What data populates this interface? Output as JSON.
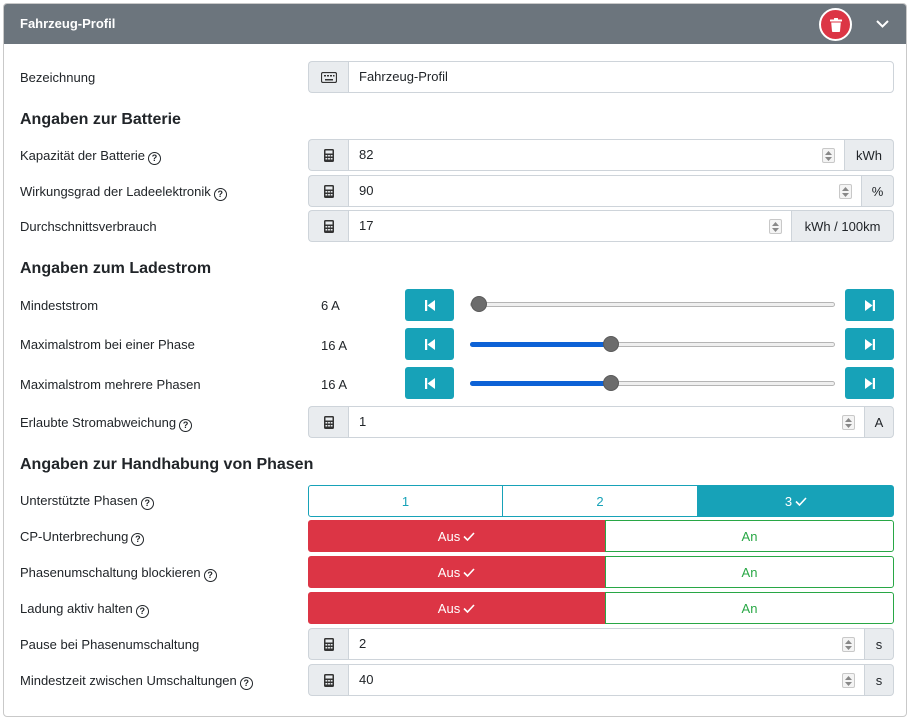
{
  "header": {
    "title": "Fahrzeug-Profil",
    "delete_icon": "trash-icon",
    "collapse_icon": "chevron-down-icon"
  },
  "name": {
    "label": "Bezeichnung",
    "value": "Fahrzeug-Profil",
    "icon": "keyboard-icon"
  },
  "battery": {
    "heading": "Angaben zur Batterie",
    "capacity": {
      "label": "Kapazität der Batterie",
      "value": "82",
      "unit": "kWh"
    },
    "efficiency": {
      "label": "Wirkungsgrad der Ladeelektronik",
      "value": "90",
      "unit": "%"
    },
    "consumption": {
      "label": "Durchschnittsverbrauch",
      "value": "17",
      "unit": "kWh / 100km"
    }
  },
  "charging": {
    "heading": "Angaben zum Ladestrom",
    "min_current": {
      "label": "Mindeststrom",
      "value": "6 A",
      "level": 0.0
    },
    "max_single": {
      "label": "Maximalstrom bei einer Phase",
      "value": "16 A",
      "level": 0.38
    },
    "max_multi": {
      "label": "Maximalstrom mehrere Phasen",
      "value": "16 A",
      "level": 0.38
    },
    "deviation": {
      "label": "Erlaubte Stromabweichung",
      "value": "1",
      "unit": "A"
    }
  },
  "phases": {
    "heading": "Angaben zur Handhabung von Phasen",
    "supported": {
      "label": "Unterstützte Phasen",
      "options": [
        "1",
        "2",
        "3"
      ],
      "selected": "3"
    },
    "cp_interrupt": {
      "label": "CP-Unterbrechung",
      "off": "Aus",
      "on": "An",
      "selected": "Aus"
    },
    "block_switch": {
      "label": "Phasenumschaltung blockieren",
      "off": "Aus",
      "on": "An",
      "selected": "Aus"
    },
    "keep_active": {
      "label": "Ladung aktiv halten",
      "off": "Aus",
      "on": "An",
      "selected": "Aus"
    },
    "pause": {
      "label": "Pause bei Phasenumschaltung",
      "value": "2",
      "unit": "s"
    },
    "min_time": {
      "label": "Mindestzeit zwischen Umschaltungen",
      "value": "40",
      "unit": "s"
    }
  },
  "colors": {
    "header": "#6c757d",
    "teal": "#17a2b8",
    "danger": "#dc3545",
    "success": "#28a745",
    "slider": "#0d62d6"
  }
}
